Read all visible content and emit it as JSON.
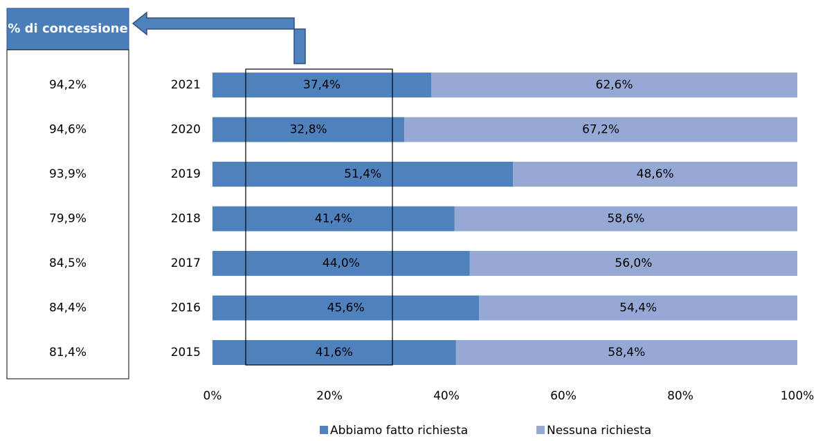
{
  "chart_data": {
    "type": "stacked-bar-horizontal",
    "categories": [
      "2021",
      "2020",
      "2019",
      "2018",
      "2017",
      "2016",
      "2015"
    ],
    "series": [
      {
        "name": "Abbiamo fatto richiesta",
        "color": "#4f81bd",
        "values": [
          37.4,
          32.8,
          51.4,
          41.4,
          44.0,
          45.6,
          41.6
        ],
        "value_labels": [
          "37,4%",
          "32,8%",
          "51,4%",
          "41,4%",
          "44,0%",
          "45,6%",
          "41,6%"
        ]
      },
      {
        "name": "Nessuna richiesta",
        "color": "#95a9d4",
        "values": [
          62.6,
          67.2,
          48.6,
          58.6,
          56.0,
          54.4,
          58.4
        ],
        "value_labels": [
          "62,6%",
          "67,2%",
          "48,6%",
          "58,6%",
          "56,0%",
          "54,4%",
          "58,4%"
        ]
      }
    ],
    "xlim": [
      0,
      100
    ],
    "xticks": [
      {
        "value": 0,
        "label": "0%"
      },
      {
        "value": 20,
        "label": "20%"
      },
      {
        "value": 40,
        "label": "40%"
      },
      {
        "value": 60,
        "label": "60%"
      },
      {
        "value": 80,
        "label": "80%"
      },
      {
        "value": 100,
        "label": "100%"
      }
    ],
    "legend": "bottom"
  },
  "side_table": {
    "title": "% di concessione",
    "rows": [
      "94,2%",
      "94,6%",
      "93,9%",
      "79,9%",
      "84,5%",
      "84,4%",
      "81,4%"
    ]
  }
}
